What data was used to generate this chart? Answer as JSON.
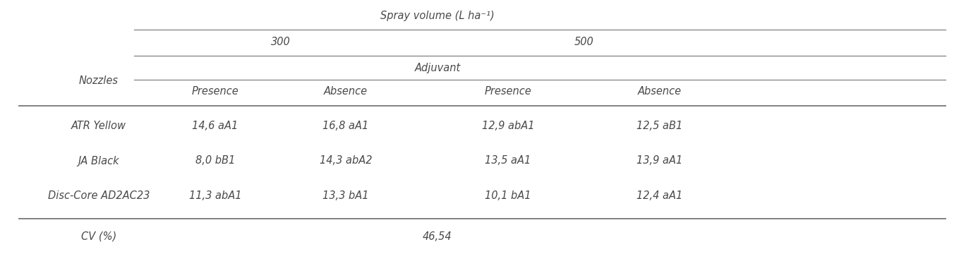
{
  "title": "Spray volume (L ha⁻¹)",
  "col_header_300": "300",
  "col_header_500": "500",
  "col_header_adjuvant": "Adjuvant",
  "col_header_presence_absence": [
    "Presence",
    "Absence",
    "Presence",
    "Absence"
  ],
  "nozzles_label": "Nozzles",
  "rows": [
    [
      "ATR Yellow",
      "14,6 aA1",
      "16,8 aA1",
      "12,9 abA1",
      "12,5 aB1"
    ],
    [
      "JA Black",
      "8,0 bB1",
      "14,3 abA2",
      "13,5 aA1",
      "13,9 aA1"
    ],
    [
      "Disc-Core AD2AC23",
      "11,3 abA1",
      "13,3 bA1",
      "10,1 bA1",
      "12,4 aA1"
    ]
  ],
  "cv_label": "CV (%)",
  "cv_value": "46,54",
  "bg_color": "#ffffff",
  "text_color": "#4a4a4a",
  "line_color": "#808080",
  "font_size": 10.5
}
